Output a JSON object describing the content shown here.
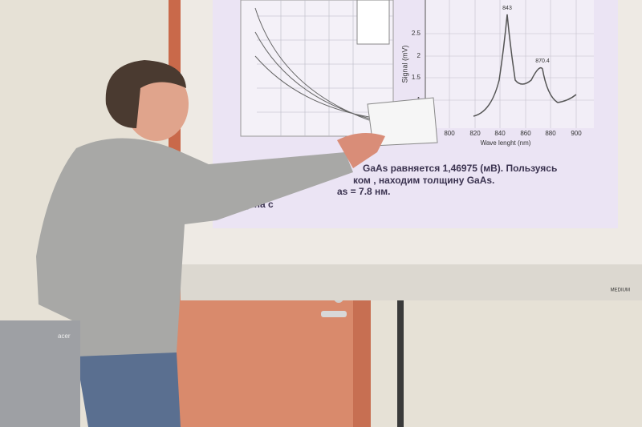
{
  "slide": {
    "plot": {
      "y_label": "Signal (mV)",
      "x_label": "Wave lenght (nm)",
      "y_ticks": [
        "2.5",
        "2",
        "1.5",
        "1"
      ],
      "x_ticks": [
        "800",
        "820",
        "840",
        "860",
        "880",
        "900"
      ],
      "peaks": [
        "843",
        "870.4"
      ]
    },
    "lines": [
      "GaAs равняется  1,46975 (мВ). Пользуясь",
      "ком  , находим толщину GaAs.",
      "as = 7.8 нм.",
      "Толщина с"
    ]
  },
  "laptop_logo": "acer",
  "screen_brand": "MEDIUM"
}
